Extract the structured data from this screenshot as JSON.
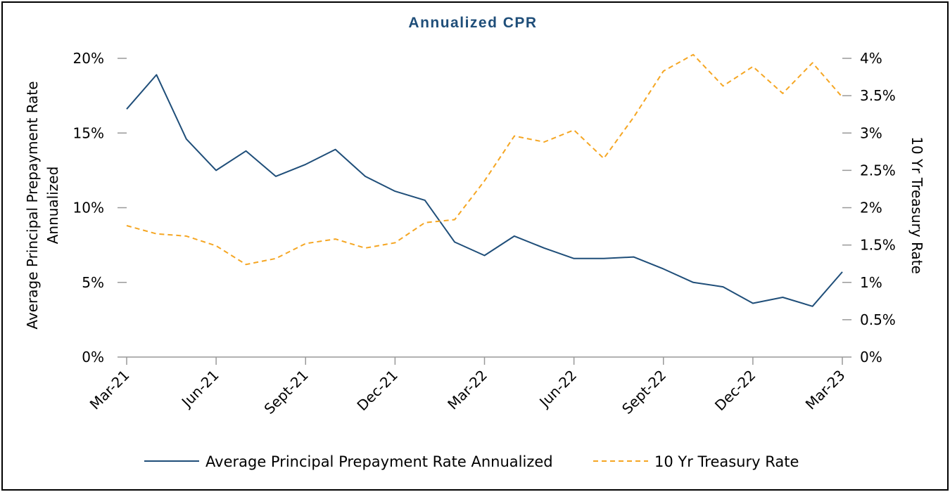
{
  "chart_data": {
    "type": "line",
    "title": "Annualized CPR",
    "categories": [
      "Mar-21",
      "Apr-21",
      "May-21",
      "Jun-21",
      "Jul-21",
      "Aug-21",
      "Sept-21",
      "Oct-21",
      "Nov-21",
      "Dec-21",
      "Jan-22",
      "Feb-22",
      "Mar-22",
      "Apr-22",
      "May-22",
      "Jun-22",
      "Jul-22",
      "Aug-22",
      "Sept-22",
      "Oct-22",
      "Nov-22",
      "Dec-22",
      "Jan-23",
      "Feb-23",
      "Mar-23"
    ],
    "x_tick_labels": [
      "Mar-21",
      "Jun-21",
      "Sept-21",
      "Dec-21",
      "Mar-22",
      "Jun-22",
      "Sept-22",
      "Dec-22",
      "Mar-23"
    ],
    "series": [
      {
        "name": "Average Principal Prepayment Rate Annualized",
        "axis": "left",
        "color": "#1f4e79",
        "style": "solid",
        "values": [
          16.6,
          18.9,
          14.6,
          12.5,
          13.8,
          12.1,
          12.9,
          13.9,
          12.1,
          11.1,
          10.5,
          7.7,
          6.8,
          8.1,
          7.3,
          6.6,
          6.6,
          6.7,
          5.9,
          5.0,
          4.7,
          3.6,
          4.0,
          3.4,
          5.7
        ]
      },
      {
        "name": "10 Yr Treasury Rate",
        "axis": "right",
        "color": "#f5a623",
        "style": "dashed",
        "values": [
          1.76,
          1.65,
          1.62,
          1.49,
          1.24,
          1.32,
          1.52,
          1.58,
          1.46,
          1.53,
          1.8,
          1.84,
          2.36,
          2.96,
          2.88,
          3.04,
          2.66,
          3.21,
          3.83,
          4.05,
          3.63,
          3.89,
          3.53,
          3.94,
          3.48
        ]
      }
    ],
    "y_left": {
      "label_line1": "Average Principal Prepayment Rate",
      "label_line2": "Annualized",
      "ylim": [
        0,
        20
      ],
      "ticks": [
        "0%",
        "5%",
        "10%",
        "15%",
        "20%"
      ]
    },
    "y_right": {
      "label": "10 Yr Treasury Rate",
      "ylim": [
        0,
        4
      ],
      "ticks": [
        "0%",
        "0.5%",
        "1%",
        "1.5%",
        "2%",
        "2.5%",
        "3%",
        "3.5%",
        "4%"
      ]
    },
    "legend_position": "bottom"
  }
}
